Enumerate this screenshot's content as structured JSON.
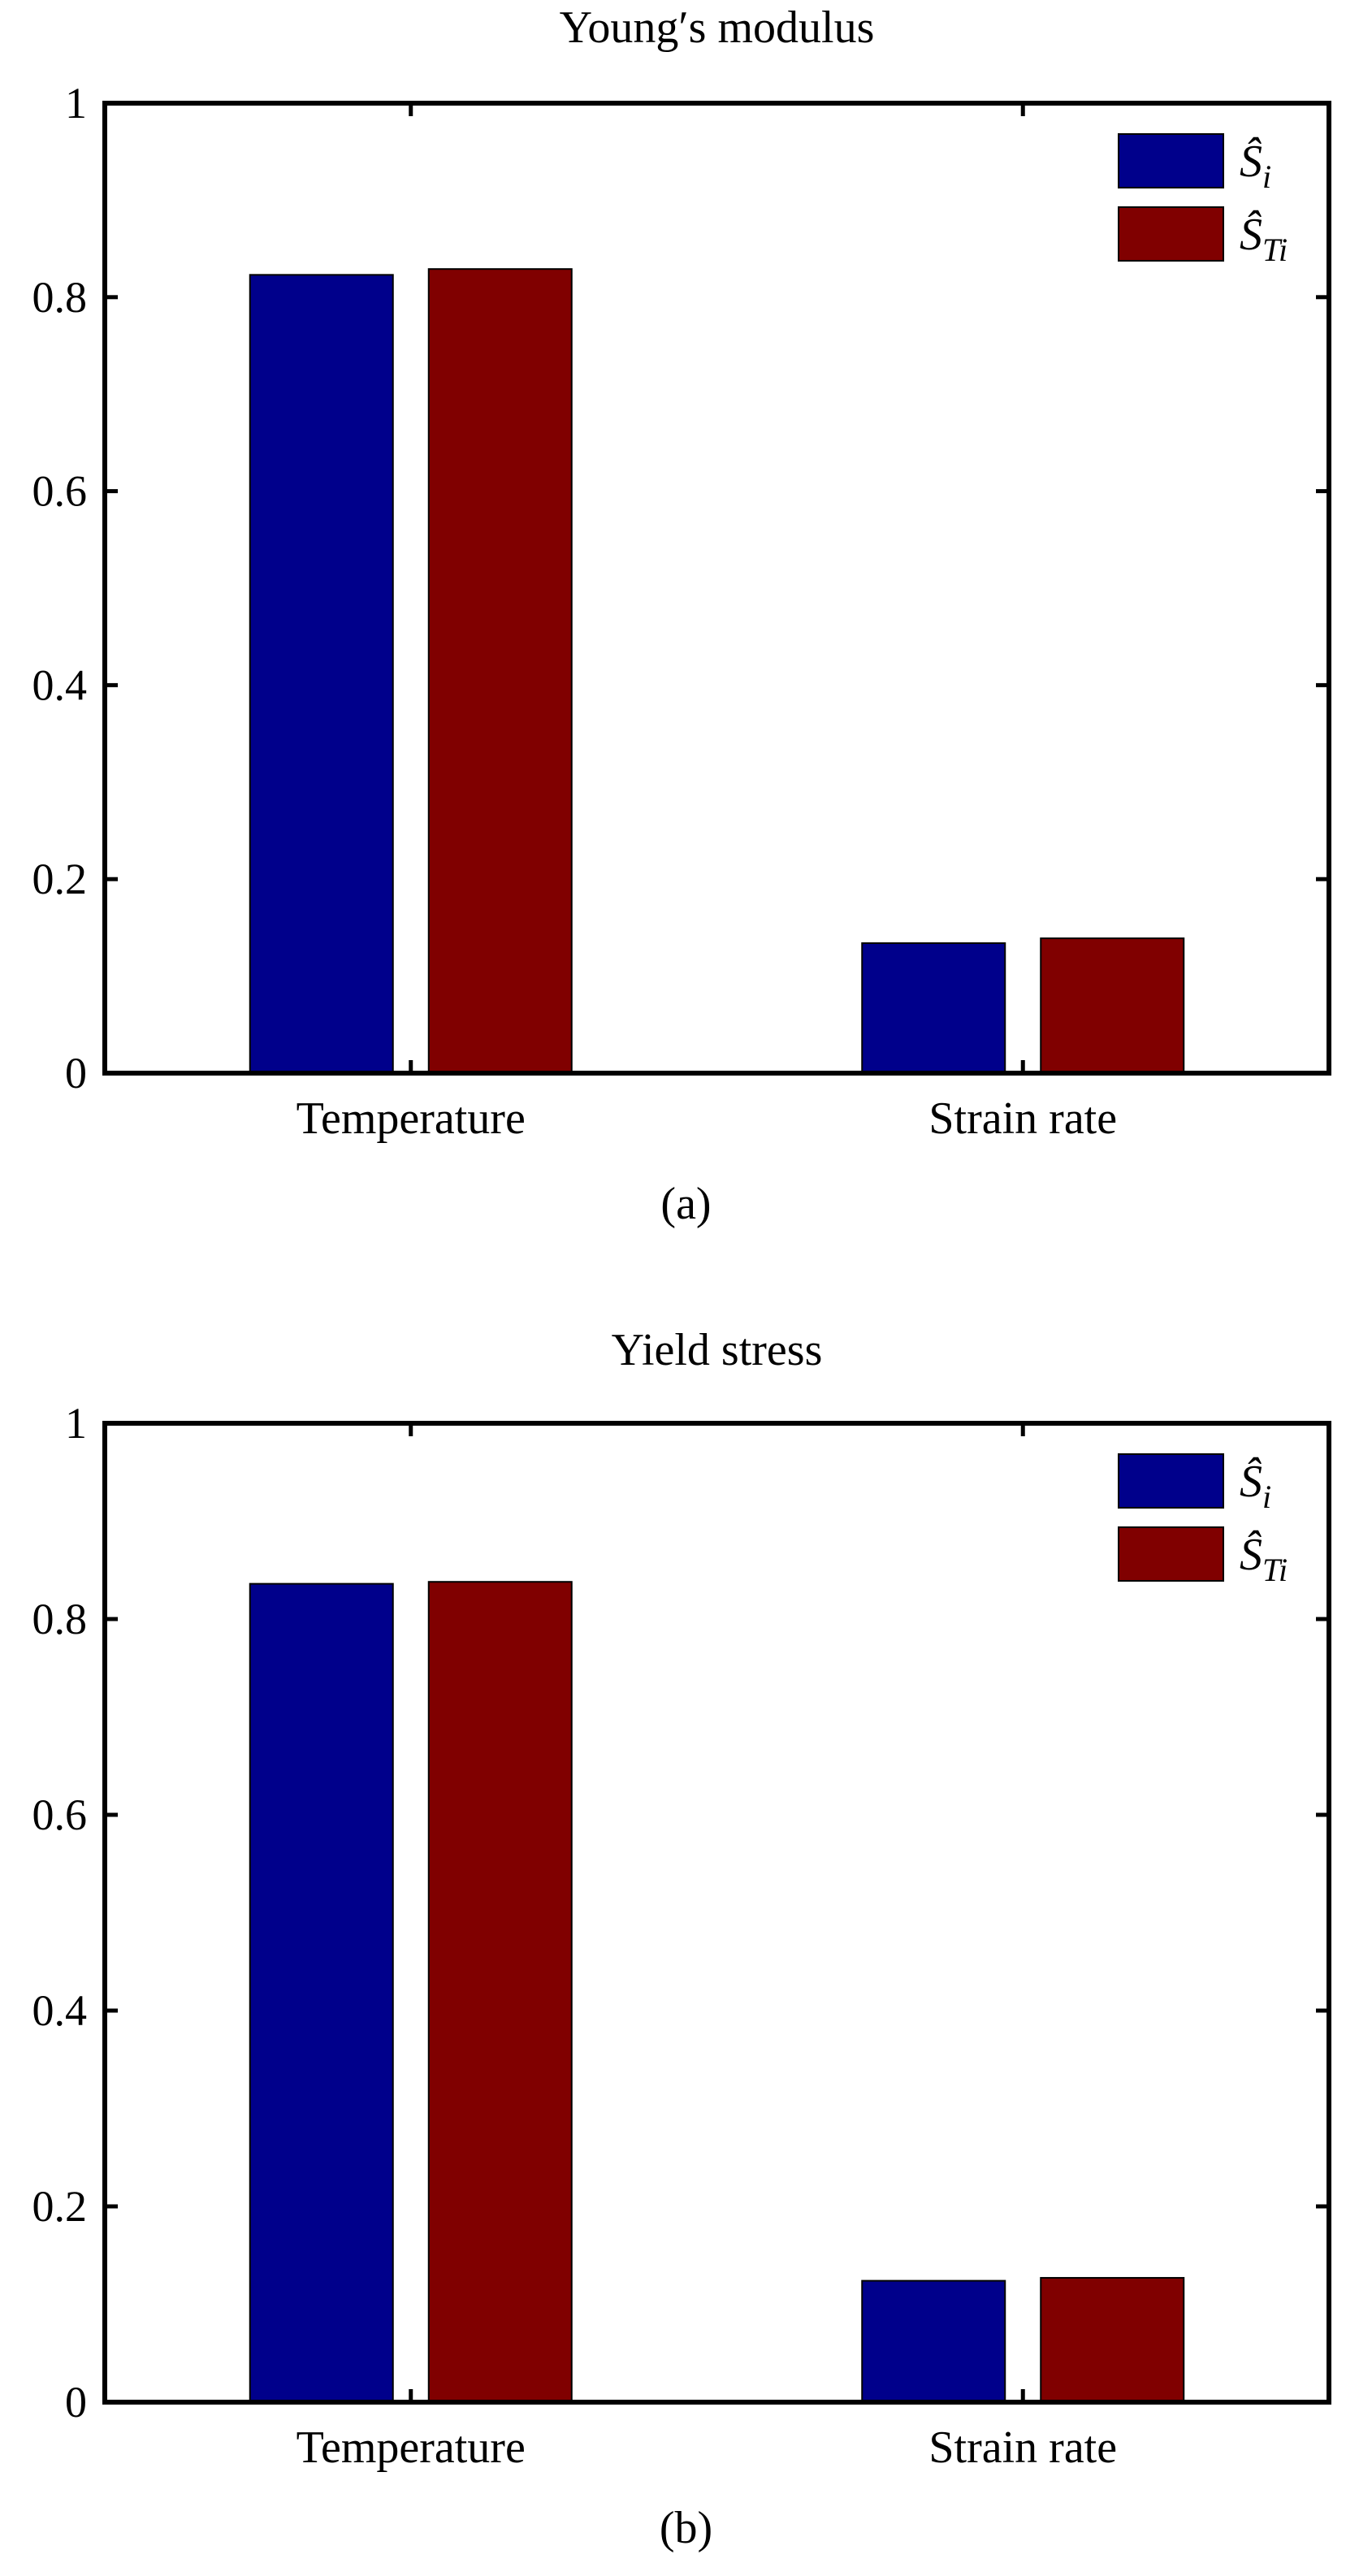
{
  "chart_data": [
    {
      "type": "bar",
      "title": "Young′s modulus",
      "caption": "(a)",
      "categories": [
        "Temperature",
        "Strain rate"
      ],
      "series": [
        {
          "name": "Ŝ",
          "subscript": "i",
          "color": "#00008B",
          "values": [
            0.823,
            0.134
          ]
        },
        {
          "name": "Ŝ",
          "subscript": "Ti",
          "color": "#800000",
          "values": [
            0.829,
            0.139
          ]
        }
      ],
      "ylim": [
        0,
        1
      ],
      "yticks": [
        0,
        0.2,
        0.4,
        0.6,
        0.8,
        1
      ],
      "ytick_labels": [
        "0",
        "0.2",
        "0.4",
        "0.6",
        "0.8",
        "1"
      ],
      "xlabel": "",
      "ylabel": "",
      "legend": "top-right",
      "grid": false
    },
    {
      "type": "bar",
      "title": "Yield stress",
      "caption": "(b)",
      "categories": [
        "Temperature",
        "Strain rate"
      ],
      "series": [
        {
          "name": "Ŝ",
          "subscript": "i",
          "color": "#00008B",
          "values": [
            0.836,
            0.124
          ]
        },
        {
          "name": "Ŝ",
          "subscript": "Ti",
          "color": "#800000",
          "values": [
            0.838,
            0.127
          ]
        }
      ],
      "ylim": [
        0,
        1
      ],
      "yticks": [
        0,
        0.2,
        0.4,
        0.6,
        0.8,
        1
      ],
      "ytick_labels": [
        "0",
        "0.2",
        "0.4",
        "0.6",
        "0.8",
        "1"
      ],
      "xlabel": "",
      "ylabel": "",
      "legend": "top-right",
      "grid": false
    }
  ]
}
